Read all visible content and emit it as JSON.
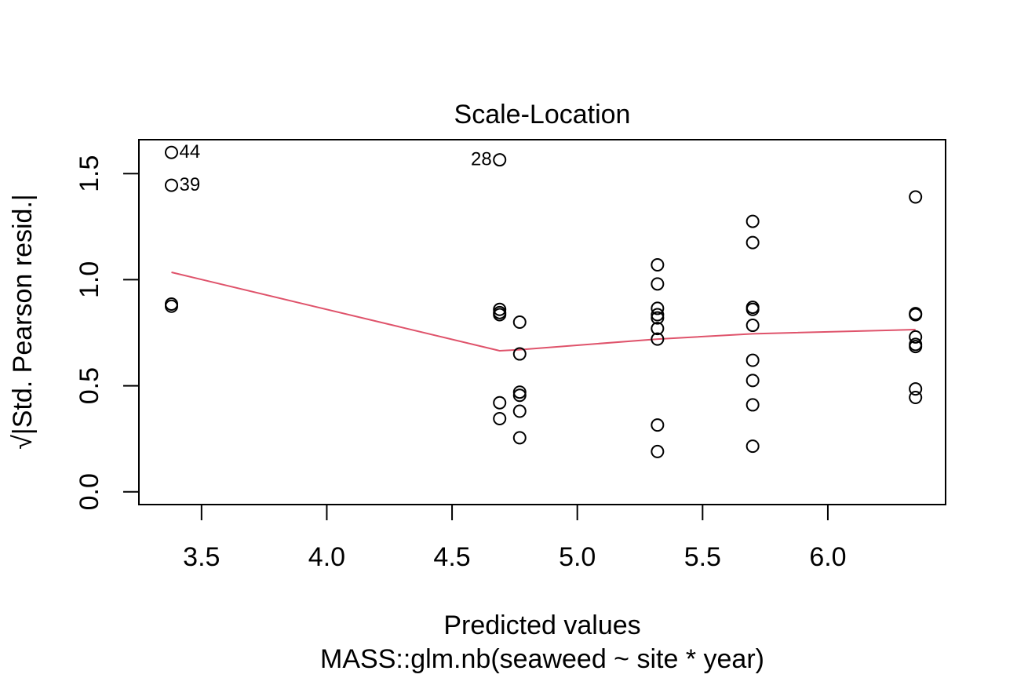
{
  "chart_data": {
    "type": "scatter",
    "title": "Scale-Location",
    "xlabel": "Predicted values",
    "subtitle": "MASS::glm.nb(seaweed ~ site * year)",
    "ylabel": "√|Std. Pearson resid.|",
    "xlim": [
      3.25,
      6.47
    ],
    "ylim": [
      -0.06,
      1.66
    ],
    "x_ticks": [
      {
        "value": 3.5,
        "label": "3.5"
      },
      {
        "value": 4.0,
        "label": "4.0"
      },
      {
        "value": 4.5,
        "label": "4.5"
      },
      {
        "value": 5.0,
        "label": "5.0"
      },
      {
        "value": 5.5,
        "label": "5.5"
      },
      {
        "value": 6.0,
        "label": "6.0"
      }
    ],
    "y_ticks": [
      {
        "value": 0.0,
        "label": "0.0"
      },
      {
        "value": 0.5,
        "label": "0.5"
      },
      {
        "value": 1.0,
        "label": "1.0"
      },
      {
        "value": 1.5,
        "label": "1.5"
      }
    ],
    "grid": false,
    "colors": {
      "points": "#000000",
      "smooth": "#df536b",
      "frame": "#000000"
    },
    "points": [
      {
        "x": 3.38,
        "y": 1.6,
        "label": "44"
      },
      {
        "x": 3.38,
        "y": 1.445,
        "label": "39"
      },
      {
        "x": 3.38,
        "y": 0.885
      },
      {
        "x": 3.38,
        "y": 0.875
      },
      {
        "x": 4.69,
        "y": 1.565,
        "label": "28"
      },
      {
        "x": 4.69,
        "y": 0.86
      },
      {
        "x": 4.69,
        "y": 0.845
      },
      {
        "x": 4.69,
        "y": 0.835
      },
      {
        "x": 4.69,
        "y": 0.42
      },
      {
        "x": 4.69,
        "y": 0.345
      },
      {
        "x": 4.77,
        "y": 0.8
      },
      {
        "x": 4.77,
        "y": 0.65
      },
      {
        "x": 4.77,
        "y": 0.47
      },
      {
        "x": 4.77,
        "y": 0.455
      },
      {
        "x": 4.77,
        "y": 0.38
      },
      {
        "x": 4.77,
        "y": 0.255
      },
      {
        "x": 5.32,
        "y": 1.07
      },
      {
        "x": 5.32,
        "y": 0.98
      },
      {
        "x": 5.32,
        "y": 0.865
      },
      {
        "x": 5.32,
        "y": 0.835
      },
      {
        "x": 5.32,
        "y": 0.82
      },
      {
        "x": 5.32,
        "y": 0.77
      },
      {
        "x": 5.32,
        "y": 0.72
      },
      {
        "x": 5.32,
        "y": 0.315
      },
      {
        "x": 5.32,
        "y": 0.19
      },
      {
        "x": 5.7,
        "y": 1.275
      },
      {
        "x": 5.7,
        "y": 1.175
      },
      {
        "x": 5.7,
        "y": 0.87
      },
      {
        "x": 5.7,
        "y": 0.86
      },
      {
        "x": 5.7,
        "y": 0.785
      },
      {
        "x": 5.7,
        "y": 0.62
      },
      {
        "x": 5.7,
        "y": 0.525
      },
      {
        "x": 5.7,
        "y": 0.41
      },
      {
        "x": 5.7,
        "y": 0.215
      },
      {
        "x": 6.35,
        "y": 1.39
      },
      {
        "x": 6.35,
        "y": 0.84
      },
      {
        "x": 6.35,
        "y": 0.835
      },
      {
        "x": 6.35,
        "y": 0.73
      },
      {
        "x": 6.35,
        "y": 0.695
      },
      {
        "x": 6.35,
        "y": 0.685
      },
      {
        "x": 6.35,
        "y": 0.485
      },
      {
        "x": 6.35,
        "y": 0.445
      }
    ],
    "smooth_line": [
      {
        "x": 3.38,
        "y": 1.035
      },
      {
        "x": 4.69,
        "y": 0.665
      },
      {
        "x": 4.77,
        "y": 0.67
      },
      {
        "x": 5.32,
        "y": 0.72
      },
      {
        "x": 5.7,
        "y": 0.745
      },
      {
        "x": 6.35,
        "y": 0.765
      }
    ]
  }
}
